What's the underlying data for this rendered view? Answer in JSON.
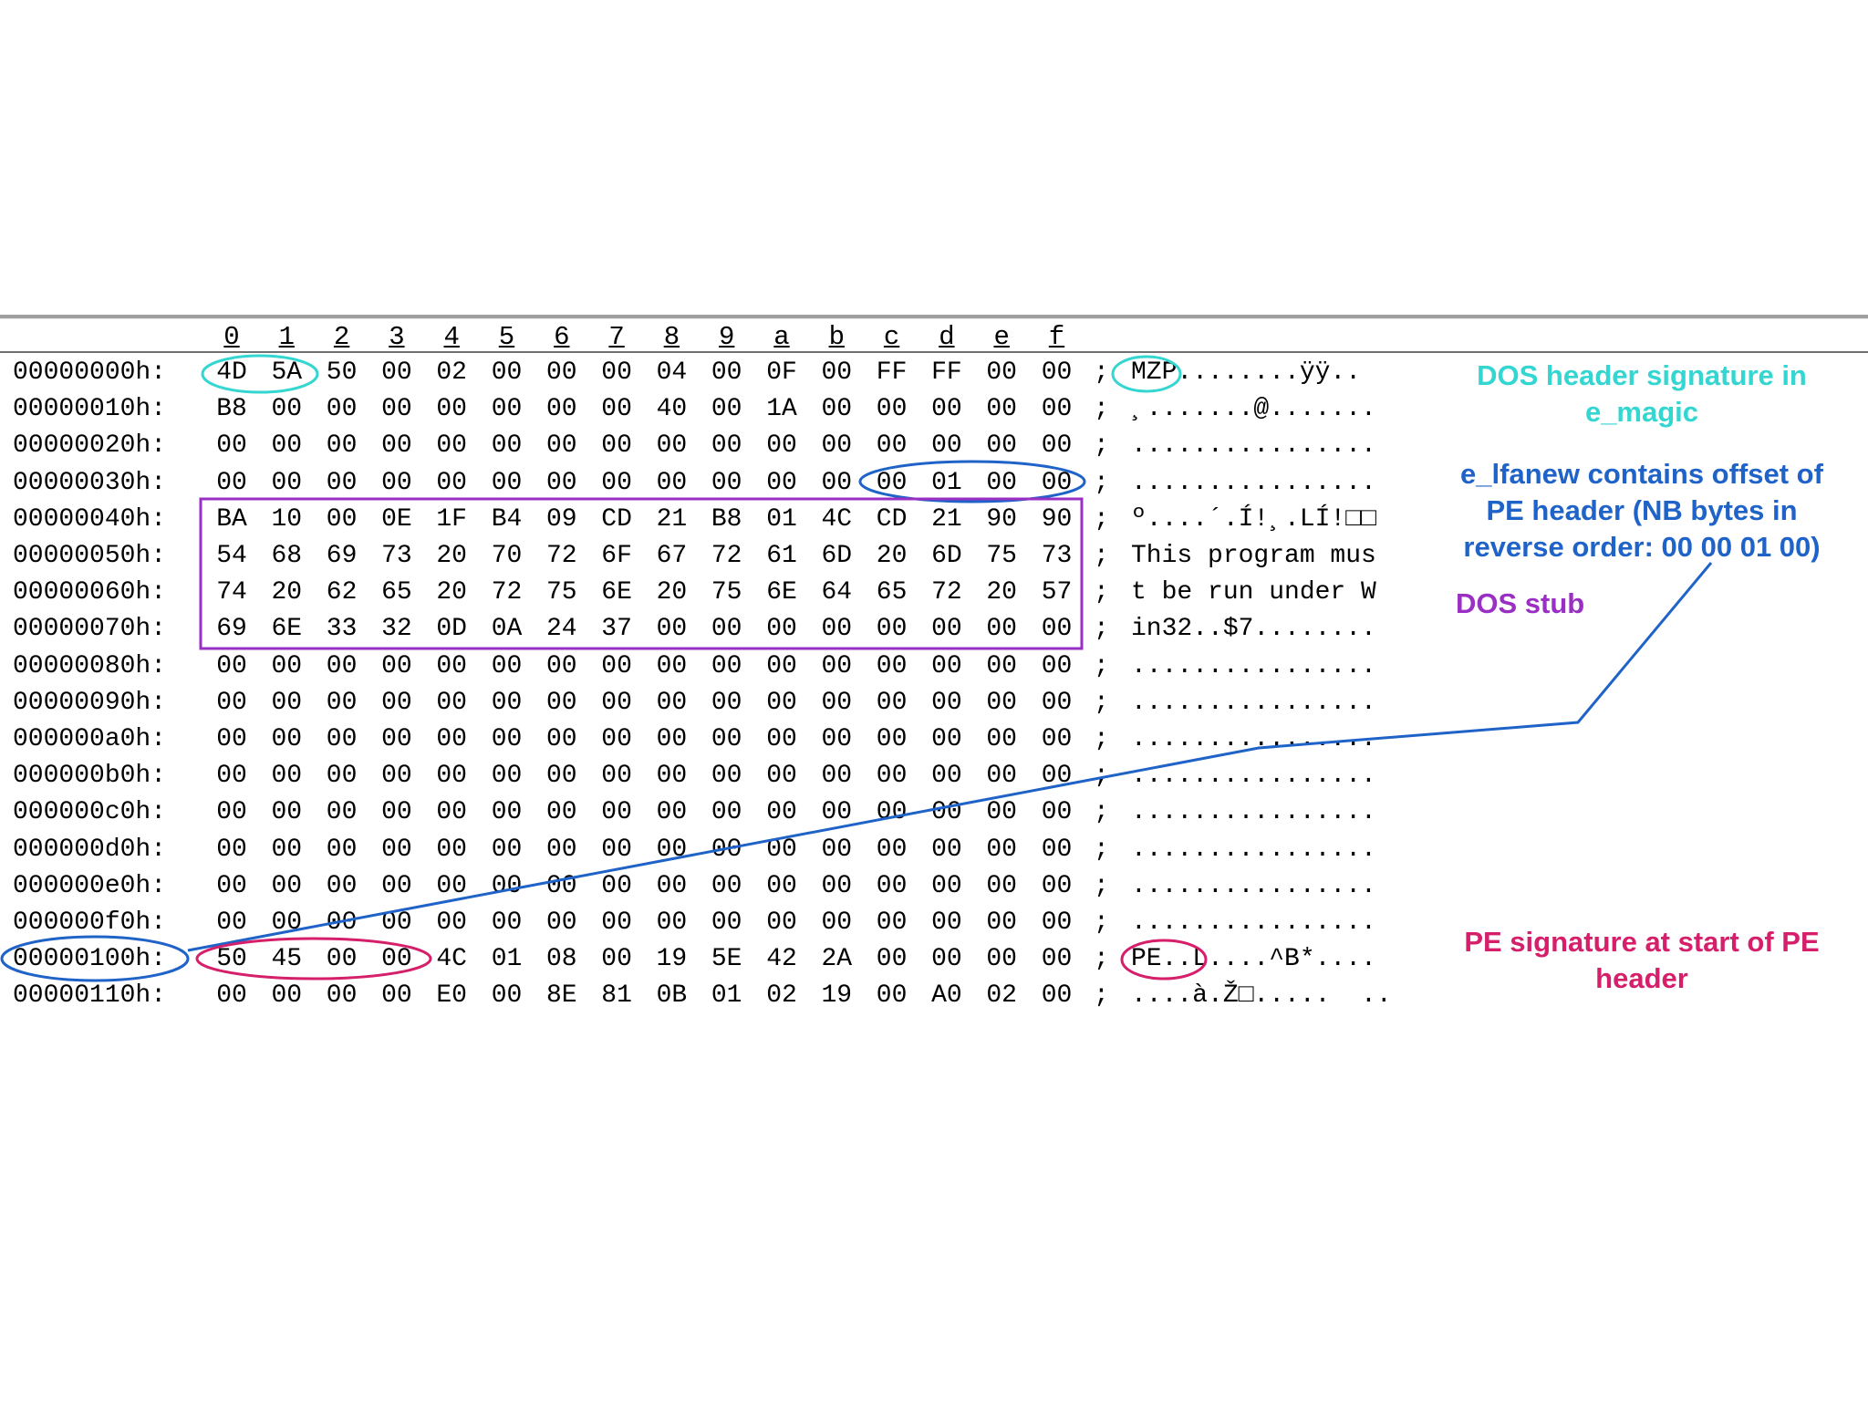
{
  "column_headers": [
    "0",
    "1",
    "2",
    "3",
    "4",
    "5",
    "6",
    "7",
    "8",
    "9",
    "a",
    "b",
    "c",
    "d",
    "e",
    "f"
  ],
  "rows": [
    {
      "offset": "00000000h:",
      "bytes": [
        "4D",
        "5A",
        "50",
        "00",
        "02",
        "00",
        "00",
        "00",
        "04",
        "00",
        "0F",
        "00",
        "FF",
        "FF",
        "00",
        "00"
      ],
      "ascii": "MZP........ÿÿ.."
    },
    {
      "offset": "00000010h:",
      "bytes": [
        "B8",
        "00",
        "00",
        "00",
        "00",
        "00",
        "00",
        "00",
        "40",
        "00",
        "1A",
        "00",
        "00",
        "00",
        "00",
        "00"
      ],
      "ascii": "¸.......@......."
    },
    {
      "offset": "00000020h:",
      "bytes": [
        "00",
        "00",
        "00",
        "00",
        "00",
        "00",
        "00",
        "00",
        "00",
        "00",
        "00",
        "00",
        "00",
        "00",
        "00",
        "00"
      ],
      "ascii": "................"
    },
    {
      "offset": "00000030h:",
      "bytes": [
        "00",
        "00",
        "00",
        "00",
        "00",
        "00",
        "00",
        "00",
        "00",
        "00",
        "00",
        "00",
        "00",
        "01",
        "00",
        "00"
      ],
      "ascii": "................"
    },
    {
      "offset": "00000040h:",
      "bytes": [
        "BA",
        "10",
        "00",
        "0E",
        "1F",
        "B4",
        "09",
        "CD",
        "21",
        "B8",
        "01",
        "4C",
        "CD",
        "21",
        "90",
        "90"
      ],
      "ascii": "º....´.Í!¸.LÍ!□□"
    },
    {
      "offset": "00000050h:",
      "bytes": [
        "54",
        "68",
        "69",
        "73",
        "20",
        "70",
        "72",
        "6F",
        "67",
        "72",
        "61",
        "6D",
        "20",
        "6D",
        "75",
        "73"
      ],
      "ascii": "This program mus"
    },
    {
      "offset": "00000060h:",
      "bytes": [
        "74",
        "20",
        "62",
        "65",
        "20",
        "72",
        "75",
        "6E",
        "20",
        "75",
        "6E",
        "64",
        "65",
        "72",
        "20",
        "57"
      ],
      "ascii": "t be run under W"
    },
    {
      "offset": "00000070h:",
      "bytes": [
        "69",
        "6E",
        "33",
        "32",
        "0D",
        "0A",
        "24",
        "37",
        "00",
        "00",
        "00",
        "00",
        "00",
        "00",
        "00",
        "00"
      ],
      "ascii": "in32..$7........"
    },
    {
      "offset": "00000080h:",
      "bytes": [
        "00",
        "00",
        "00",
        "00",
        "00",
        "00",
        "00",
        "00",
        "00",
        "00",
        "00",
        "00",
        "00",
        "00",
        "00",
        "00"
      ],
      "ascii": "................"
    },
    {
      "offset": "00000090h:",
      "bytes": [
        "00",
        "00",
        "00",
        "00",
        "00",
        "00",
        "00",
        "00",
        "00",
        "00",
        "00",
        "00",
        "00",
        "00",
        "00",
        "00"
      ],
      "ascii": "................"
    },
    {
      "offset": "000000a0h:",
      "bytes": [
        "00",
        "00",
        "00",
        "00",
        "00",
        "00",
        "00",
        "00",
        "00",
        "00",
        "00",
        "00",
        "00",
        "00",
        "00",
        "00"
      ],
      "ascii": "................"
    },
    {
      "offset": "000000b0h:",
      "bytes": [
        "00",
        "00",
        "00",
        "00",
        "00",
        "00",
        "00",
        "00",
        "00",
        "00",
        "00",
        "00",
        "00",
        "00",
        "00",
        "00"
      ],
      "ascii": "................"
    },
    {
      "offset": "000000c0h:",
      "bytes": [
        "00",
        "00",
        "00",
        "00",
        "00",
        "00",
        "00",
        "00",
        "00",
        "00",
        "00",
        "00",
        "00",
        "00",
        "00",
        "00"
      ],
      "ascii": "................"
    },
    {
      "offset": "000000d0h:",
      "bytes": [
        "00",
        "00",
        "00",
        "00",
        "00",
        "00",
        "00",
        "00",
        "00",
        "00",
        "00",
        "00",
        "00",
        "00",
        "00",
        "00"
      ],
      "ascii": "................"
    },
    {
      "offset": "000000e0h:",
      "bytes": [
        "00",
        "00",
        "00",
        "00",
        "00",
        "00",
        "00",
        "00",
        "00",
        "00",
        "00",
        "00",
        "00",
        "00",
        "00",
        "00"
      ],
      "ascii": "................"
    },
    {
      "offset": "000000f0h:",
      "bytes": [
        "00",
        "00",
        "00",
        "00",
        "00",
        "00",
        "00",
        "00",
        "00",
        "00",
        "00",
        "00",
        "00",
        "00",
        "00",
        "00"
      ],
      "ascii": "................"
    },
    {
      "offset": "00000100h:",
      "bytes": [
        "50",
        "45",
        "00",
        "00",
        "4C",
        "01",
        "08",
        "00",
        "19",
        "5E",
        "42",
        "2A",
        "00",
        "00",
        "00",
        "00"
      ],
      "ascii": "PE..L....^B*...."
    },
    {
      "offset": "00000110h:",
      "bytes": [
        "00",
        "00",
        "00",
        "00",
        "E0",
        "00",
        "8E",
        "81",
        "0B",
        "01",
        "02",
        "19",
        "00",
        "A0",
        "02",
        "00"
      ],
      "ascii": "....à.Ž□.....  .."
    }
  ],
  "separator": ";",
  "annotations": {
    "dos_signature": [
      "DOS header signature in",
      "e_magic"
    ],
    "e_lfanew": [
      "e_lfanew contains offset of",
      "PE header (NB bytes in",
      "reverse order: 00 00 01 00)"
    ],
    "dos_stub": [
      "DOS stub"
    ],
    "pe_signature": [
      "PE signature at start of PE",
      "header"
    ]
  },
  "colors": {
    "dos_signature": "#33d6d0",
    "e_lfanew": "#1f63c8",
    "dos_stub": "#9a2fc4",
    "pe_signature": "#d61f6a"
  }
}
